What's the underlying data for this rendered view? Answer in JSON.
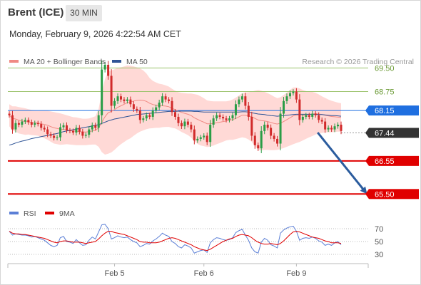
{
  "header": {
    "instrument": "Brent (ICE)",
    "interval": "30 MIN",
    "datetime": "Monday, February 9, 2026 4:22:54 AM CET"
  },
  "colors": {
    "bollinger_band": "#ffd9d6",
    "ma20": "#f08a84",
    "ma50": "#2f5496",
    "resistance": "#9bc26b",
    "support": "#e00000",
    "current_price": "#333333",
    "pivot": "#1f6fe0",
    "bull_candle": "#2a9d46",
    "bear_candle": "#d12a2a",
    "rsi": "#5b7fd6",
    "rsi_ma": "#e00000",
    "forecast_arrow": "#2b5c9e"
  },
  "chart_data": [
    {
      "type": "candlestick",
      "title": "Brent (ICE)",
      "legend": [
        {
          "name": "MA 20 + Bollinger Bands",
          "color": "#f08a84"
        },
        {
          "name": "MA 50",
          "color": "#2f5496"
        }
      ],
      "copyright": "Research © 2026 Trading Central",
      "x_ticks": [
        {
          "label": "Feb 5",
          "index": 33
        },
        {
          "label": "Feb 6",
          "index": 61
        },
        {
          "label": "Feb 9",
          "index": 90
        }
      ],
      "y_range": [
        65.1,
        70.3
      ],
      "levels": [
        {
          "value": 69.5,
          "label": "69.50",
          "kind": "resistance"
        },
        {
          "value": 68.75,
          "label": "68.75",
          "kind": "resistance"
        },
        {
          "value": 68.15,
          "label": "68.15",
          "kind": "pivot"
        },
        {
          "value": 67.44,
          "label": "67.44",
          "kind": "current"
        },
        {
          "value": 66.55,
          "label": "66.55",
          "kind": "support"
        },
        {
          "value": 65.5,
          "label": "65.50",
          "kind": "support"
        }
      ],
      "forecast_arrow": {
        "from_index": 96,
        "from_value": 67.45,
        "to_value": 65.5
      },
      "closes": [
        68.0,
        67.55,
        67.75,
        67.7,
        67.8,
        67.85,
        67.78,
        67.7,
        67.75,
        67.72,
        67.6,
        67.55,
        67.4,
        67.35,
        67.28,
        67.3,
        67.62,
        67.68,
        67.52,
        67.5,
        67.45,
        67.6,
        67.48,
        67.35,
        67.38,
        67.55,
        67.68,
        67.6,
        68.0,
        69.45,
        69.6,
        69.25,
        68.3,
        68.45,
        68.6,
        68.5,
        68.45,
        68.5,
        68.35,
        68.2,
        68.15,
        67.85,
        67.9,
        68.0,
        67.95,
        68.15,
        68.25,
        68.4,
        68.6,
        68.5,
        68.45,
        68.1,
        67.95,
        67.75,
        67.65,
        67.8,
        67.7,
        67.55,
        67.2,
        67.25,
        67.3,
        67.35,
        67.15,
        67.7,
        67.9,
        68.0,
        67.95,
        67.9,
        67.85,
        67.9,
        68.0,
        68.35,
        68.5,
        68.6,
        68.3,
        67.95,
        67.35,
        67.05,
        66.95,
        67.5,
        67.7,
        67.6,
        67.35,
        67.25,
        67.1,
        68.05,
        68.45,
        68.6,
        68.7,
        68.75,
        68.5,
        67.85,
        67.95,
        68.0,
        67.95,
        68.05,
        68.0,
        67.85,
        67.8,
        67.55,
        67.6,
        67.55,
        67.65,
        67.7,
        67.5
      ],
      "ma20": [
        68.0,
        67.9,
        67.88,
        67.84,
        67.82,
        67.8,
        67.79,
        67.77,
        67.76,
        67.75,
        67.73,
        67.71,
        67.68,
        67.64,
        67.6,
        67.58,
        67.56,
        67.55,
        67.54,
        67.52,
        67.5,
        67.49,
        67.48,
        67.47,
        67.47,
        67.48,
        67.5,
        67.52,
        67.6,
        67.78,
        67.95,
        68.08,
        68.12,
        68.18,
        68.25,
        68.3,
        68.35,
        68.4,
        68.42,
        68.45,
        68.47,
        68.48,
        68.47,
        68.44,
        68.38,
        68.34,
        68.32,
        68.3,
        68.3,
        68.29,
        68.27,
        68.22,
        68.18,
        68.13,
        68.09,
        68.06,
        68.03,
        67.99,
        67.92,
        67.87,
        67.82,
        67.78,
        67.73,
        67.73,
        67.74,
        67.76,
        67.78,
        67.8,
        67.82,
        67.84,
        67.86,
        67.9,
        67.95,
        68.0,
        68.0,
        67.98,
        67.95,
        67.9,
        67.85,
        67.83,
        67.82,
        67.8,
        67.77,
        67.74,
        67.72,
        67.75,
        67.8,
        67.86,
        67.92,
        67.98,
        68.0,
        68.0,
        68.0,
        68.01,
        68.02,
        68.04,
        68.05,
        68.04,
        68.02,
        68.0,
        67.98,
        67.96,
        67.95,
        67.94,
        67.93
      ],
      "bb_width": [
        0.35,
        0.38,
        0.4,
        0.42,
        0.42,
        0.42,
        0.4,
        0.4,
        0.4,
        0.4,
        0.42,
        0.44,
        0.46,
        0.48,
        0.5,
        0.5,
        0.5,
        0.48,
        0.46,
        0.45,
        0.44,
        0.44,
        0.43,
        0.42,
        0.42,
        0.42,
        0.43,
        0.45,
        0.6,
        0.95,
        1.2,
        1.3,
        1.3,
        1.28,
        1.25,
        1.22,
        1.2,
        1.18,
        1.15,
        1.1,
        1.05,
        1.0,
        0.95,
        0.88,
        0.8,
        0.75,
        0.72,
        0.7,
        0.68,
        0.66,
        0.64,
        0.62,
        0.6,
        0.6,
        0.62,
        0.64,
        0.66,
        0.7,
        0.75,
        0.78,
        0.78,
        0.76,
        0.74,
        0.72,
        0.7,
        0.68,
        0.66,
        0.64,
        0.62,
        0.62,
        0.64,
        0.66,
        0.68,
        0.7,
        0.72,
        0.75,
        0.8,
        0.88,
        0.95,
        0.95,
        0.92,
        0.9,
        0.88,
        0.85,
        0.82,
        0.82,
        0.84,
        0.86,
        0.88,
        0.9,
        0.88,
        0.85,
        0.8,
        0.76,
        0.72,
        0.7,
        0.66,
        0.62,
        0.58,
        0.55,
        0.52,
        0.5,
        0.48,
        0.46,
        0.45
      ],
      "ma50": [
        67.05,
        67.08,
        67.12,
        67.15,
        67.18,
        67.2,
        67.23,
        67.26,
        67.28,
        67.3,
        67.32,
        67.34,
        67.36,
        67.38,
        67.4,
        67.42,
        67.45,
        67.48,
        67.5,
        67.52,
        67.54,
        67.56,
        67.58,
        67.6,
        67.62,
        67.64,
        67.66,
        67.68,
        67.7,
        67.74,
        67.78,
        67.82,
        67.85,
        67.88,
        67.9,
        67.92,
        67.94,
        67.96,
        67.98,
        68.0,
        68.02,
        68.03,
        68.04,
        68.05,
        68.06,
        68.07,
        68.08,
        68.09,
        68.1,
        68.11,
        68.12,
        68.12,
        68.12,
        68.13,
        68.13,
        68.13,
        68.13,
        68.13,
        68.12,
        68.12,
        68.11,
        68.1,
        68.1,
        68.1,
        68.1,
        68.1,
        68.1,
        68.1,
        68.1,
        68.1,
        68.1,
        68.1,
        68.1,
        68.11,
        68.11,
        68.1,
        68.08,
        68.06,
        68.04,
        68.03,
        68.02,
        68.0,
        67.99,
        67.98,
        67.97,
        67.98,
        67.99,
        68.0,
        68.01,
        68.02,
        68.03,
        68.03,
        68.03,
        68.03,
        68.03,
        68.03,
        68.03,
        68.02,
        68.02,
        68.01,
        68.0,
        67.99,
        67.99,
        67.98,
        67.97
      ]
    },
    {
      "type": "line",
      "title": "",
      "legend": [
        {
          "name": "RSI",
          "color": "#5b7fd6"
        },
        {
          "name": "9MA",
          "color": "#e00000"
        }
      ],
      "y_ticks": [
        70,
        50,
        30
      ],
      "y_range": [
        20,
        80
      ],
      "rsi": [
        66,
        60,
        62,
        61,
        60,
        60,
        59,
        57,
        58,
        56,
        54,
        52,
        48,
        44,
        42,
        44,
        56,
        58,
        50,
        49,
        47,
        53,
        48,
        44,
        45,
        52,
        57,
        54,
        65,
        76,
        77,
        70,
        54,
        56,
        59,
        57,
        56,
        57,
        53,
        50,
        48,
        42,
        44,
        47,
        46,
        51,
        54,
        58,
        63,
        60,
        58,
        50,
        47,
        42,
        40,
        45,
        43,
        40,
        32,
        34,
        36,
        37,
        33,
        48,
        53,
        56,
        55,
        53,
        52,
        53,
        56,
        64,
        67,
        69,
        60,
        52,
        40,
        34,
        32,
        49,
        55,
        52,
        45,
        43,
        40,
        63,
        68,
        71,
        73,
        74,
        66,
        52,
        55,
        56,
        55,
        57,
        55,
        51,
        49,
        44,
        46,
        44,
        48,
        50,
        45
      ],
      "rsi_ma": [
        66,
        63,
        62,
        62,
        61,
        61,
        60,
        59,
        58,
        57,
        56,
        55,
        53,
        51,
        49,
        48,
        50,
        51,
        51,
        50,
        49,
        49,
        49,
        48,
        47,
        48,
        49,
        50,
        54,
        59,
        63,
        66,
        66,
        64,
        63,
        62,
        61,
        59,
        57,
        55,
        53,
        50,
        49,
        49,
        48,
        48,
        48,
        49,
        51,
        53,
        55,
        56,
        55,
        53,
        51,
        49,
        47,
        45,
        42,
        40,
        38,
        37,
        36,
        38,
        41,
        44,
        47,
        50,
        52,
        54,
        55,
        58,
        60,
        61,
        60,
        59,
        56,
        52,
        49,
        47,
        46,
        46,
        47,
        46,
        45,
        47,
        51,
        56,
        61,
        65,
        66,
        65,
        63,
        61,
        59,
        57,
        56,
        55,
        53,
        51,
        50,
        48,
        48,
        48,
        47
      ],
      "x_ticks": [
        "Feb 5",
        "Feb 6",
        "Feb 9"
      ]
    }
  ]
}
